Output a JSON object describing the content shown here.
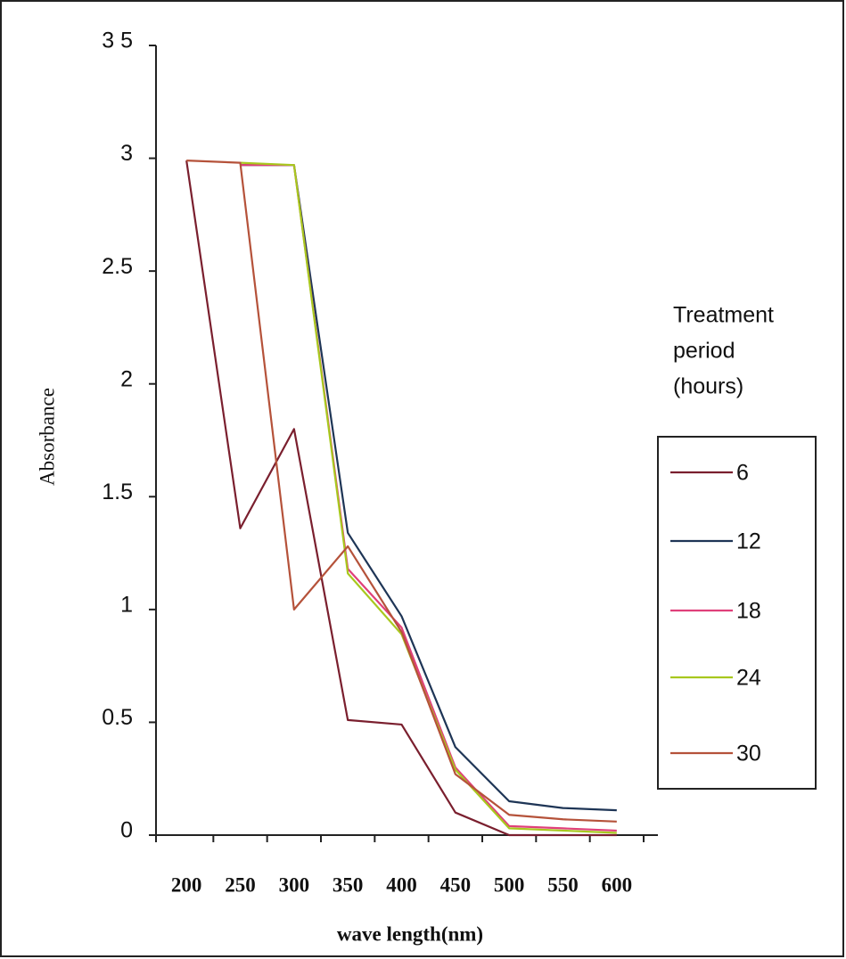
{
  "chart_data": {
    "type": "line",
    "x_label": "wave length(nm)",
    "y_label": "Absorbance",
    "categories": [
      "200",
      "250",
      "300",
      "350",
      "400",
      "450",
      "500",
      "550",
      "600"
    ],
    "series": [
      {
        "name": "6",
        "color": "#7a1f2e",
        "values": [
          2.99,
          1.36,
          1.8,
          0.51,
          0.49,
          0.1,
          0.0,
          0.0,
          0.0
        ]
      },
      {
        "name": "12",
        "color": "#1e3556",
        "values": [
          null,
          2.97,
          2.97,
          1.34,
          0.97,
          0.39,
          0.15,
          0.12,
          0.11
        ]
      },
      {
        "name": "18",
        "color": "#e0407a",
        "values": [
          null,
          2.97,
          2.97,
          1.18,
          0.92,
          0.3,
          0.04,
          0.03,
          0.02
        ]
      },
      {
        "name": "24",
        "color": "#a8c81e",
        "values": [
          null,
          2.98,
          2.97,
          1.16,
          0.89,
          0.29,
          0.03,
          0.02,
          0.01
        ]
      },
      {
        "name": "30",
        "color": "#b5523a",
        "values": [
          2.99,
          2.98,
          1.0,
          1.28,
          0.9,
          0.27,
          0.09,
          0.07,
          0.06
        ]
      }
    ],
    "ylim": [
      0,
      3.5
    ],
    "yticks": [
      0,
      0.5,
      1,
      1.5,
      2,
      2.5,
      3,
      {
        "value": 3.5,
        "label": "3 5"
      }
    ],
    "legend_title": [
      "Treatment",
      "period",
      "(hours)"
    ]
  }
}
